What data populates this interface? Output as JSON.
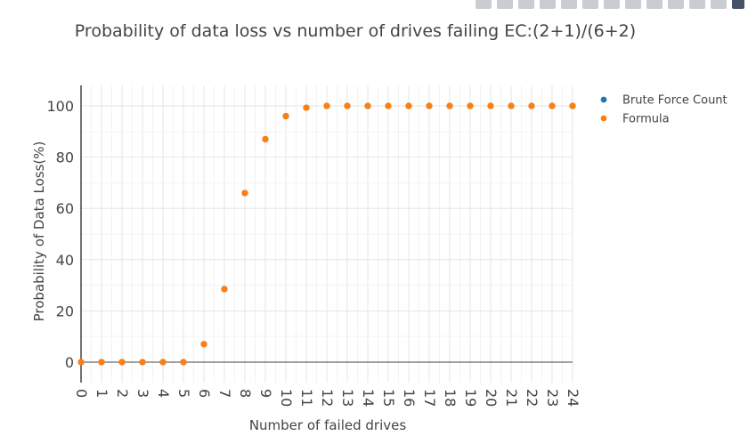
{
  "modebar": {
    "buttons": [
      "camera-icon",
      "zoom-icon",
      "pan-icon",
      "box-select-icon",
      "lasso-icon",
      "zoom-in-icon",
      "zoom-out-icon",
      "autoscale-icon",
      "home-icon",
      "spike-lines-icon",
      "hover-closest-icon",
      "hover-compare-icon",
      "plotly-logo-icon"
    ]
  },
  "chart_data": {
    "type": "scatter",
    "title": "Probability of data loss vs number of drives failing EC:(2+1)/(6+2)",
    "xlabel": "Number of failed drives",
    "ylabel": "Probability of Data Loss(%)",
    "xlim": [
      0,
      24
    ],
    "ylim": [
      -8,
      108
    ],
    "xticks": [
      "0",
      "1",
      "2",
      "3",
      "4",
      "5",
      "6",
      "7",
      "8",
      "9",
      "10",
      "11",
      "12",
      "13",
      "14",
      "15",
      "16",
      "17",
      "18",
      "19",
      "20",
      "21",
      "22",
      "23",
      "24"
    ],
    "yticks": [
      "0",
      "20",
      "40",
      "60",
      "80",
      "100"
    ],
    "grid": true,
    "legend_position": "top-right",
    "series": [
      {
        "name": "Brute Force Count",
        "color": "#1f77b4",
        "x": [
          0,
          1,
          2,
          3,
          4,
          5,
          6,
          7,
          8,
          9,
          10,
          11,
          12,
          13,
          14,
          15,
          16,
          17,
          18,
          19,
          20,
          21,
          22,
          23,
          24
        ],
        "y": [
          0,
          0,
          0,
          0,
          0,
          0,
          7,
          28.5,
          66,
          87,
          96,
          99.3,
          100,
          100,
          100,
          100,
          100,
          100,
          100,
          100,
          100,
          100,
          100,
          100,
          100
        ]
      },
      {
        "name": "Formula",
        "color": "#ff7f0e",
        "x": [
          0,
          1,
          2,
          3,
          4,
          5,
          6,
          7,
          8,
          9,
          10,
          11,
          12,
          13,
          14,
          15,
          16,
          17,
          18,
          19,
          20,
          21,
          22,
          23,
          24
        ],
        "y": [
          0,
          0,
          0,
          0,
          0,
          0,
          7,
          28.5,
          66,
          87,
          96,
          99.3,
          100,
          100,
          100,
          100,
          100,
          100,
          100,
          100,
          100,
          100,
          100,
          100,
          100
        ]
      }
    ]
  }
}
